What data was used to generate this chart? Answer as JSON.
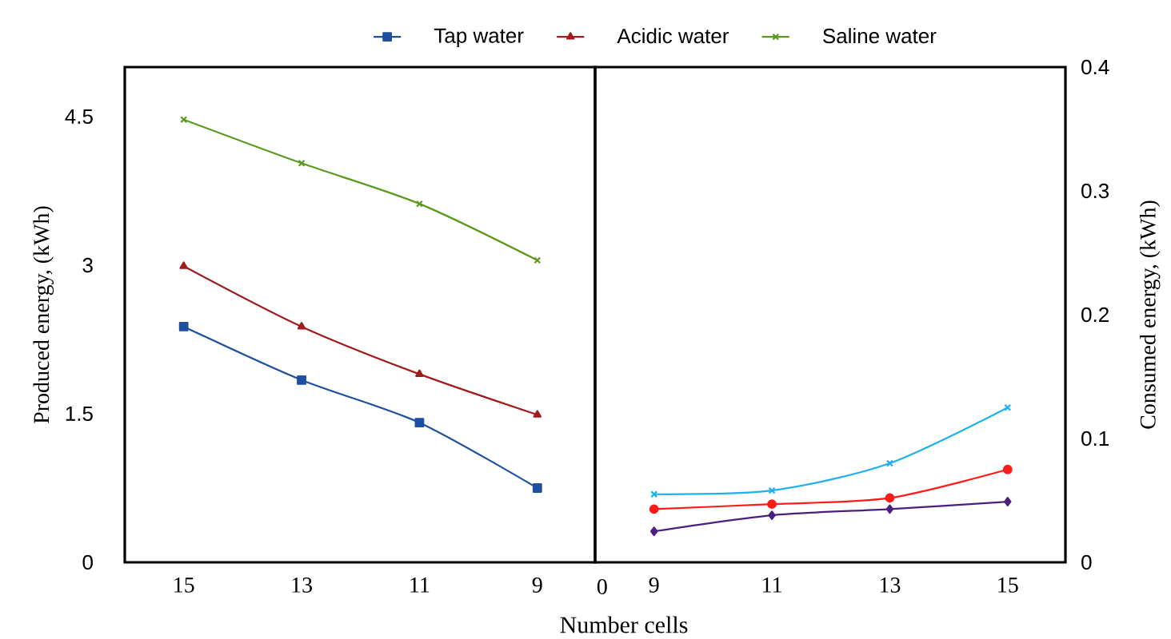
{
  "chart_data": [
    {
      "type": "line",
      "xlabel": "Number cells",
      "ylabel": "Produced energy, (kWh)",
      "categories": [
        "15",
        "13",
        "11",
        "9"
      ],
      "ylim": [
        0,
        5
      ],
      "yticks": [
        0,
        1.5,
        3,
        4.5
      ],
      "legend": "top",
      "grid": false,
      "line_style": "solid",
      "series": [
        {
          "name": "Tap water",
          "color": "#1f4fa0",
          "marker": "square",
          "values": [
            2.38,
            1.84,
            1.41,
            0.75
          ]
        },
        {
          "name": "Acidic water",
          "color": "#a01c1c",
          "marker": "triangle",
          "values": [
            2.99,
            2.38,
            1.9,
            1.49
          ]
        },
        {
          "name": "Saline water",
          "color": "#5a9a1e",
          "marker": "cross",
          "values": [
            4.47,
            4.03,
            3.62,
            3.05
          ]
        }
      ]
    },
    {
      "type": "line",
      "y2label": "Consumed energy, (kWh)",
      "categories": [
        "9",
        "11",
        "13",
        "15"
      ],
      "y2lim": [
        0,
        0.4
      ],
      "y2ticks": [
        0,
        0.1,
        0.2,
        0.3,
        0.4
      ],
      "grid": false,
      "line_style": "solid",
      "annotations": [
        "0"
      ],
      "series": [
        {
          "color": "#1fb0f0",
          "marker": "cross",
          "axis": "y2",
          "values": [
            0.055,
            0.058,
            0.08,
            0.125
          ]
        },
        {
          "color": "#ff1a1a",
          "marker": "circle",
          "axis": "y2",
          "values": [
            0.043,
            0.047,
            0.052,
            0.075
          ]
        },
        {
          "color": "#4a1f80",
          "marker": "diamond",
          "axis": "y2",
          "values": [
            0.025,
            0.038,
            0.043,
            0.049
          ]
        }
      ]
    }
  ]
}
